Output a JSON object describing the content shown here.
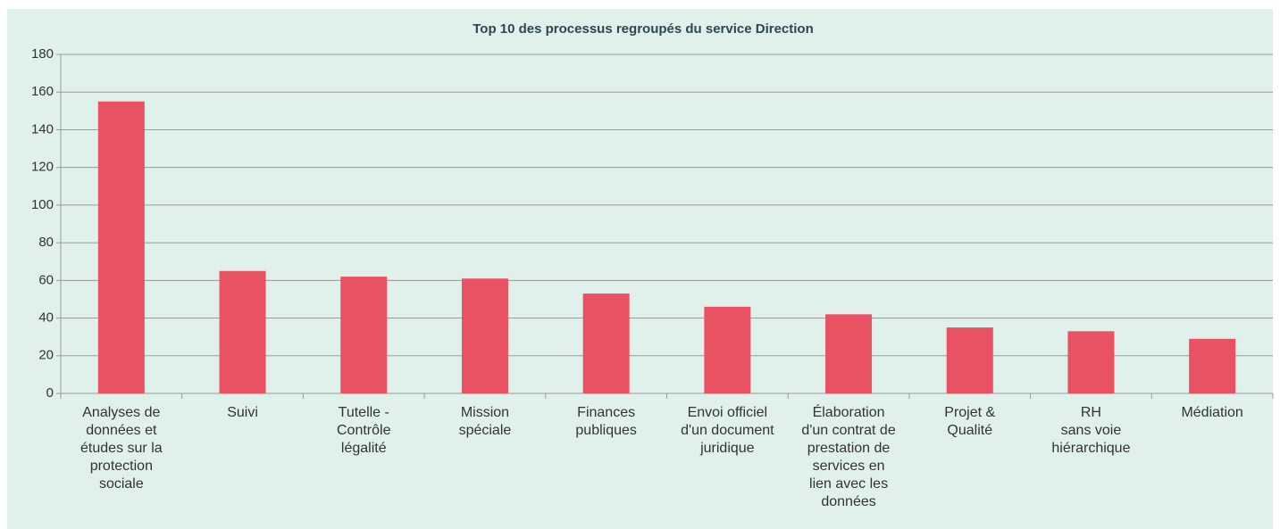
{
  "chart_data": {
    "type": "bar",
    "title": "Top 10 des processus regroupés du service Direction",
    "categories": [
      "Analyses de données et études sur la protection sociale",
      "Suivi",
      "Tutelle - Contrôle légalité",
      "Mission spéciale",
      "Finances publiques",
      "Envoi officiel d'un document juridique",
      "Élaboration d'un contrat de prestation de services en lien avec les données",
      "Projet & Qualité",
      "RH\nsans voie hiérarchique",
      "Médiation"
    ],
    "values": [
      155,
      65,
      62,
      61,
      53,
      46,
      42,
      35,
      33,
      29
    ],
    "color": "#e85263",
    "ylim": [
      0,
      180
    ],
    "yticks": [
      0,
      20,
      40,
      60,
      80,
      100,
      120,
      140,
      160,
      180
    ],
    "grid": true
  }
}
